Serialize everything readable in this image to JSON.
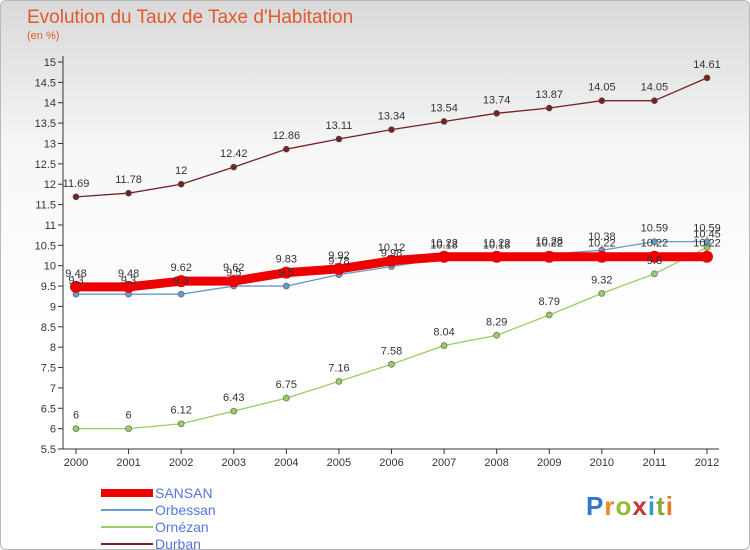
{
  "chart_data": {
    "type": "line",
    "title": "Evolution du Taux de Taxe d'Habitation",
    "subtitle": "(en %)",
    "categories": [
      "2000",
      "2001",
      "2002",
      "2003",
      "2004",
      "2005",
      "2006",
      "2007",
      "2008",
      "2009",
      "2010",
      "2011",
      "2012"
    ],
    "ylim": [
      5.5,
      15
    ],
    "yticks": [
      "5.5",
      "6",
      "6.5",
      "7",
      "7.5",
      "8",
      "8.5",
      "9",
      "9.5",
      "10",
      "10.5",
      "11",
      "11.5",
      "12",
      "12.5",
      "13",
      "13.5",
      "14",
      "14.5",
      "15"
    ],
    "grid": false,
    "legend_position": "bottom-left",
    "series": [
      {
        "name": "SANSAN",
        "color": "#ee0000",
        "values": [
          9.48,
          9.48,
          9.62,
          9.62,
          9.83,
          9.92,
          10.12,
          10.22,
          10.22,
          10.22,
          10.22,
          10.22,
          10.22
        ],
        "labels": [
          "9.48",
          "9.48",
          "9.62",
          "9.62",
          "9.83",
          "9.92",
          "10.12",
          "10.22",
          "10.22",
          "10.22",
          "10.22",
          "10.22",
          "10.22"
        ]
      },
      {
        "name": "Orbessan",
        "color": "#6699cc",
        "values": [
          9.3,
          9.3,
          9.3,
          9.5,
          9.5,
          9.78,
          9.98,
          10.18,
          10.18,
          10.28,
          10.38,
          10.59,
          10.59
        ],
        "labels": [
          "9.3",
          "9.3",
          "9.3",
          "9.5",
          "9.5",
          "9.78",
          "9.98",
          "10.18",
          "10.18",
          "10.28",
          "10.38",
          "10.59",
          "10.59"
        ]
      },
      {
        "name": "Ornézan",
        "color": "#99cc66",
        "values": [
          6,
          6,
          6.12,
          6.43,
          6.75,
          7.16,
          7.58,
          8.04,
          8.29,
          8.79,
          9.32,
          9.8,
          10.45
        ],
        "labels": [
          "6",
          "6",
          "6.12",
          "6.43",
          "6.75",
          "7.16",
          "7.58",
          "8.04",
          "8.29",
          "8.79",
          "9.32",
          "9.8",
          "10.45"
        ]
      },
      {
        "name": "Durban",
        "color": "#772222",
        "values": [
          11.69,
          11.78,
          12,
          12.42,
          12.86,
          13.11,
          13.34,
          13.54,
          13.74,
          13.87,
          14.05,
          14.05,
          14.61
        ],
        "labels": [
          "11.69",
          "11.78",
          "12",
          "12.42",
          "12.86",
          "13.11",
          "13.34",
          "13.54",
          "13.74",
          "13.87",
          "14.05",
          "14.05",
          "14.61"
        ]
      }
    ]
  },
  "branding": {
    "logo_letters": [
      "P",
      "r",
      "o",
      "x",
      "i",
      "t",
      "i"
    ],
    "logo_colors": [
      "#3377cc",
      "#ee8822",
      "#99bb33",
      "#cc3333",
      "#3399cc",
      "#88aa33",
      "#ee7722"
    ]
  }
}
